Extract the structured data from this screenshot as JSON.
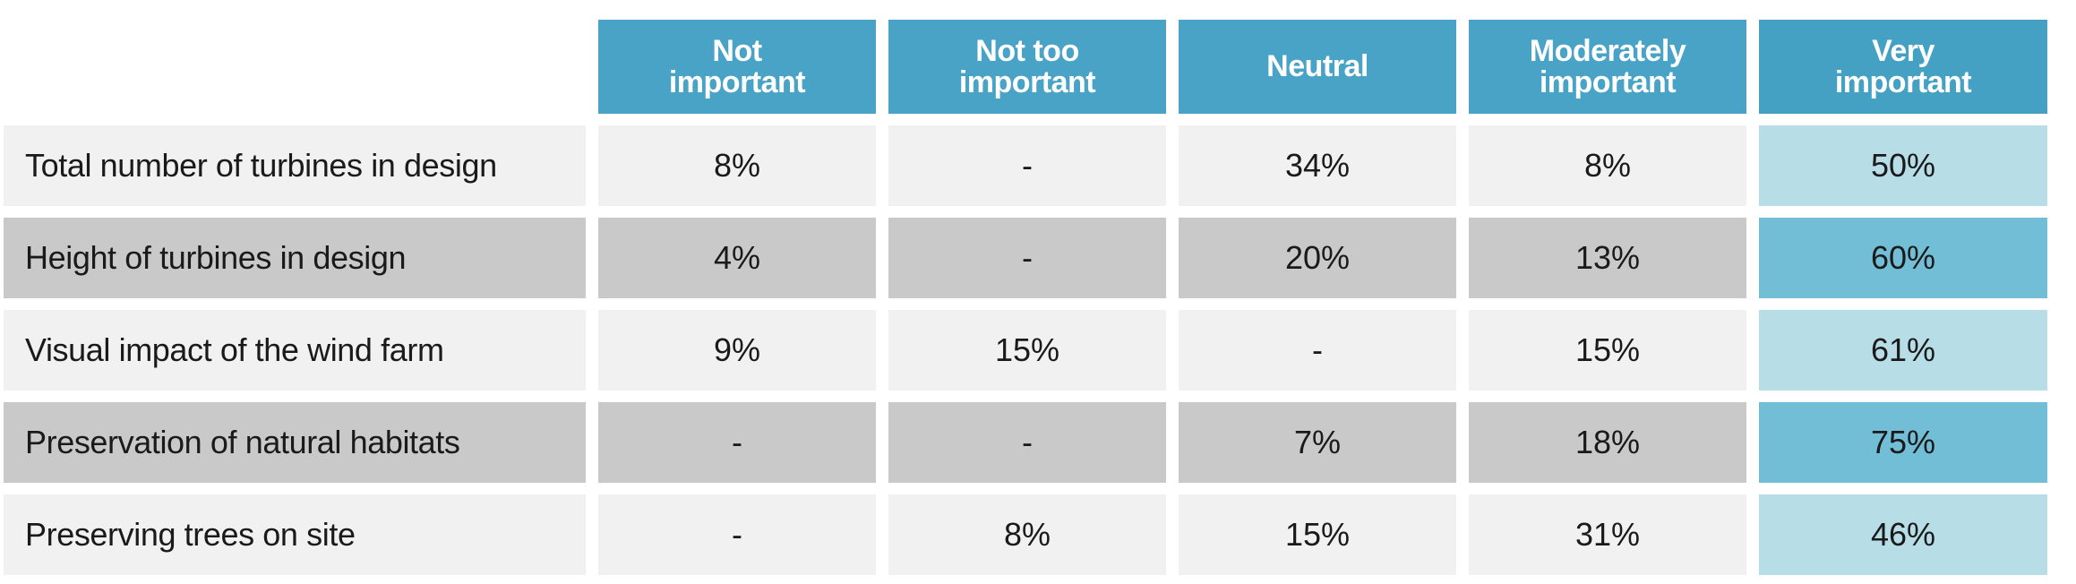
{
  "chart_data": {
    "type": "table",
    "columns": [
      "Not\nimportant",
      "Not too\nimportant",
      "Neutral",
      "Moderately\nimportant",
      "Very\nimportant"
    ],
    "rows": [
      {
        "label": "Total number of turbines in design",
        "values": [
          "8%",
          "-",
          "34%",
          "8%",
          "50%"
        ]
      },
      {
        "label": "Height of turbines in design",
        "values": [
          "4%",
          "-",
          "20%",
          "13%",
          "60%"
        ]
      },
      {
        "label": "Visual impact of the wind farm",
        "values": [
          "9%",
          "15%",
          "-",
          "15%",
          "61%"
        ]
      },
      {
        "label": "Preservation of natural habitats",
        "values": [
          "-",
          "-",
          "7%",
          "18%",
          "75%"
        ]
      },
      {
        "label": "Preserving trees on site",
        "values": [
          "-",
          "8%",
          "15%",
          "31%",
          "46%"
        ]
      }
    ],
    "colors": {
      "header": "#49a3c6",
      "row_light": "#f1f1f1",
      "row_dark": "#c9c9ca",
      "highlight_light": "#b7dde7",
      "highlight_dark": "#72bed6"
    }
  }
}
